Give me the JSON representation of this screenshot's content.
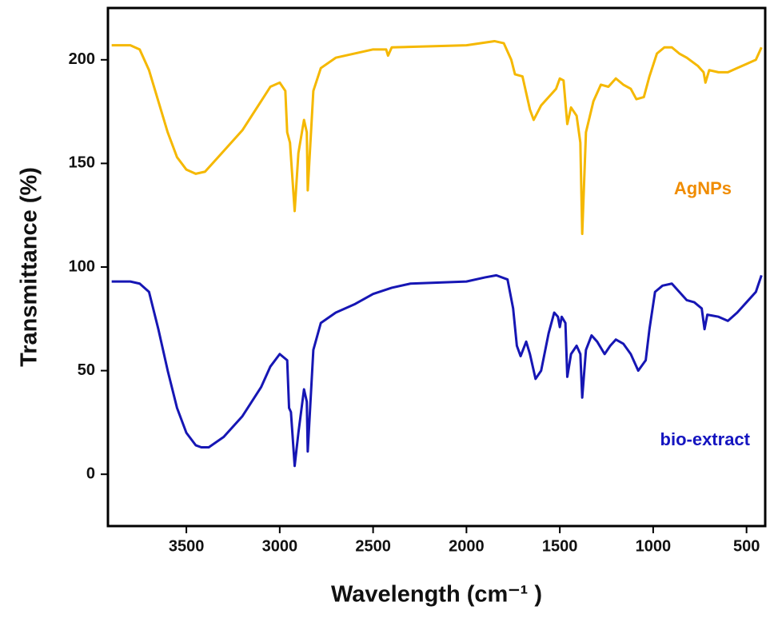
{
  "chart_data": {
    "type": "line",
    "x_label": "Wavelength (cm⁻¹ )",
    "y_label": "Transmittance (%)",
    "annotations": [
      "AgNPs",
      "bio-extract"
    ],
    "xlim": [
      3920,
      400
    ],
    "ylim": [
      -25,
      225
    ],
    "xticks": [
      3500,
      3000,
      2500,
      2000,
      1500,
      1000,
      500
    ],
    "yticks": [
      0,
      50,
      100,
      150,
      200
    ],
    "series": [
      {
        "name": "AgNPs",
        "color": "#f5b800",
        "x": [
          3900,
          3800,
          3750,
          3700,
          3650,
          3600,
          3550,
          3500,
          3450,
          3400,
          3300,
          3200,
          3100,
          3050,
          3000,
          2970,
          2960,
          2945,
          2920,
          2900,
          2870,
          2855,
          2850,
          2820,
          2780,
          2700,
          2500,
          2430,
          2420,
          2400,
          2000,
          1850,
          1800,
          1760,
          1740,
          1700,
          1660,
          1640,
          1600,
          1560,
          1520,
          1500,
          1480,
          1460,
          1440,
          1410,
          1390,
          1380,
          1360,
          1320,
          1280,
          1240,
          1200,
          1160,
          1120,
          1090,
          1050,
          1020,
          980,
          940,
          900,
          860,
          820,
          760,
          730,
          720,
          700,
          650,
          600,
          550,
          500,
          450,
          420
        ],
        "values": [
          207,
          207,
          205,
          195,
          180,
          165,
          153,
          147,
          145,
          146,
          156,
          166,
          180,
          187,
          189,
          185,
          165,
          160,
          127,
          155,
          171,
          165,
          137,
          185,
          196,
          201,
          205,
          205,
          202,
          206,
          207,
          209,
          208,
          200,
          193,
          192,
          176,
          171,
          178,
          182,
          186,
          191,
          190,
          169,
          177,
          173,
          160,
          116,
          165,
          180,
          188,
          187,
          191,
          188,
          186,
          181,
          182,
          192,
          203,
          206,
          206,
          203,
          201,
          197,
          194,
          189,
          195,
          194,
          194,
          196,
          198,
          200,
          206
        ]
      },
      {
        "name": "bio-extract",
        "color": "#1616b4",
        "x": [
          3900,
          3800,
          3750,
          3700,
          3650,
          3600,
          3550,
          3500,
          3450,
          3420,
          3380,
          3300,
          3200,
          3100,
          3050,
          3000,
          2960,
          2950,
          2940,
          2920,
          2900,
          2870,
          2855,
          2850,
          2820,
          2780,
          2700,
          2600,
          2500,
          2400,
          2300,
          2000,
          1900,
          1840,
          1780,
          1750,
          1730,
          1710,
          1680,
          1660,
          1630,
          1600,
          1560,
          1530,
          1510,
          1500,
          1490,
          1470,
          1460,
          1440,
          1410,
          1390,
          1380,
          1360,
          1330,
          1300,
          1260,
          1230,
          1200,
          1160,
          1120,
          1080,
          1040,
          1020,
          990,
          950,
          900,
          860,
          820,
          780,
          740,
          725,
          710,
          650,
          600,
          550,
          500,
          450,
          420
        ],
        "values": [
          93,
          93,
          92,
          88,
          70,
          50,
          32,
          20,
          14,
          13,
          13,
          18,
          28,
          42,
          52,
          58,
          55,
          32,
          30,
          4,
          20,
          41,
          35,
          11,
          60,
          73,
          78,
          82,
          87,
          90,
          92,
          93,
          95,
          96,
          94,
          80,
          62,
          57,
          64,
          58,
          46,
          50,
          68,
          78,
          76,
          71,
          76,
          73,
          47,
          58,
          62,
          58,
          37,
          60,
          67,
          64,
          58,
          62,
          65,
          63,
          58,
          50,
          55,
          70,
          88,
          91,
          92,
          88,
          84,
          83,
          80,
          70,
          77,
          76,
          74,
          78,
          83,
          88,
          96
        ]
      }
    ]
  }
}
